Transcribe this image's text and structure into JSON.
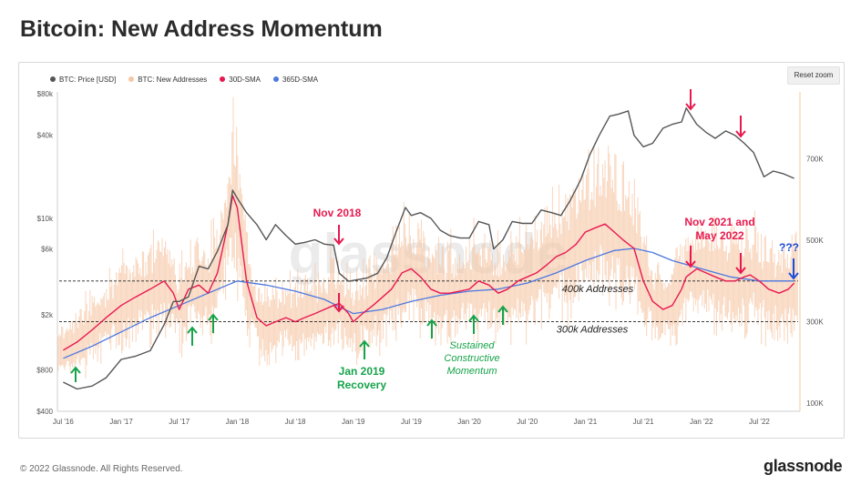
{
  "page": {
    "title": "Bitcoin: New Address Momentum",
    "copyright": "© 2022 Glassnode. All Rights Reserved.",
    "brand": "glassnode",
    "reset_zoom_label": "Reset zoom",
    "watermark": "glassnode"
  },
  "chart_data": {
    "type": "line",
    "title": "Bitcoin: New Address Momentum",
    "legend": [
      {
        "name": "BTC: Price [USD]",
        "color": "#555555"
      },
      {
        "name": "BTC: New Addresses",
        "color": "#f6c7a5"
      },
      {
        "name": "30D-SMA",
        "color": "#e8194f"
      },
      {
        "name": "365D-SMA",
        "color": "#4d79e0"
      }
    ],
    "legend_position": "top-left",
    "x_ticks": [
      "Jul '16",
      "Jan '17",
      "Jul '17",
      "Jan '18",
      "Jul '18",
      "Jan '19",
      "Jul '19",
      "Jan '20",
      "Jul '20",
      "Jan '21",
      "Jul '21",
      "Jan '22",
      "Jul '22"
    ],
    "x_range": [
      2016.45,
      2022.85
    ],
    "y_left": {
      "scale": "log",
      "ticks": [
        "$400",
        "$800",
        "$2k",
        "$6k",
        "$10k",
        "$40k",
        "$80k"
      ],
      "tick_values": [
        400,
        800,
        2000,
        6000,
        10000,
        40000,
        80000
      ],
      "range": [
        400,
        80000
      ]
    },
    "y_right": {
      "scale": "linear",
      "ticks": [
        "100K",
        "300K",
        "500K",
        "700K"
      ],
      "tick_values": [
        100000,
        300000,
        500000,
        700000
      ],
      "range": [
        80000,
        860000
      ]
    },
    "reference_lines": [
      {
        "value": 400000,
        "label": "400k Addresses"
      },
      {
        "value": 300000,
        "label": "300k Addresses"
      }
    ],
    "series": [
      {
        "name": "BTC: Price [USD]",
        "axis": "left",
        "x": [
          2016.5,
          2016.62,
          2016.75,
          2016.87,
          2017.0,
          2017.12,
          2017.25,
          2017.37,
          2017.45,
          2017.5,
          2017.58,
          2017.67,
          2017.75,
          2017.83,
          2017.92,
          2017.96,
          2018.0,
          2018.08,
          2018.17,
          2018.25,
          2018.33,
          2018.42,
          2018.5,
          2018.58,
          2018.67,
          2018.75,
          2018.83,
          2018.88,
          2018.96,
          2019.04,
          2019.12,
          2019.21,
          2019.29,
          2019.37,
          2019.45,
          2019.5,
          2019.58,
          2019.67,
          2019.75,
          2019.83,
          2019.92,
          2020.0,
          2020.08,
          2020.17,
          2020.21,
          2020.29,
          2020.37,
          2020.46,
          2020.54,
          2020.62,
          2020.71,
          2020.79,
          2020.87,
          2020.96,
          2021.04,
          2021.12,
          2021.21,
          2021.29,
          2021.37,
          2021.42,
          2021.5,
          2021.58,
          2021.67,
          2021.75,
          2021.83,
          2021.87,
          2021.96,
          2022.04,
          2022.12,
          2022.21,
          2022.29,
          2022.37,
          2022.45,
          2022.54,
          2022.62,
          2022.71,
          2022.8
        ],
        "y": [
          650,
          580,
          610,
          700,
          950,
          1000,
          1100,
          1700,
          2500,
          2500,
          2700,
          4500,
          4300,
          5800,
          9000,
          16000,
          14000,
          11000,
          9000,
          7000,
          9000,
          7500,
          6500,
          6700,
          7000,
          6500,
          6400,
          4000,
          3500,
          3600,
          3700,
          4000,
          5200,
          8000,
          12000,
          10500,
          11000,
          10000,
          8200,
          7500,
          7200,
          7200,
          9500,
          9000,
          6000,
          7000,
          9500,
          9200,
          9200,
          11500,
          11000,
          10500,
          13500,
          19000,
          29000,
          40000,
          55000,
          57000,
          60000,
          40000,
          33000,
          35000,
          45000,
          48000,
          50000,
          63000,
          48000,
          42000,
          38000,
          43000,
          40000,
          35000,
          30000,
          20000,
          22000,
          21000,
          19500
        ]
      },
      {
        "name": "30D-SMA",
        "axis": "right",
        "x": [
          2016.5,
          2016.62,
          2016.75,
          2016.87,
          2017.0,
          2017.12,
          2017.25,
          2017.37,
          2017.45,
          2017.5,
          2017.58,
          2017.67,
          2017.75,
          2017.83,
          2017.92,
          2017.96,
          2018.0,
          2018.08,
          2018.17,
          2018.25,
          2018.33,
          2018.42,
          2018.5,
          2018.58,
          2018.67,
          2018.75,
          2018.83,
          2018.88,
          2018.96,
          2019.0,
          2019.08,
          2019.17,
          2019.25,
          2019.33,
          2019.42,
          2019.5,
          2019.58,
          2019.67,
          2019.75,
          2019.83,
          2019.92,
          2020.0,
          2020.08,
          2020.17,
          2020.25,
          2020.33,
          2020.42,
          2020.5,
          2020.58,
          2020.67,
          2020.75,
          2020.83,
          2020.92,
          2021.0,
          2021.08,
          2021.17,
          2021.25,
          2021.33,
          2021.42,
          2021.5,
          2021.58,
          2021.67,
          2021.75,
          2021.83,
          2021.87,
          2021.96,
          2022.04,
          2022.12,
          2022.21,
          2022.29,
          2022.37,
          2022.42,
          2022.5,
          2022.58,
          2022.67,
          2022.75,
          2022.8
        ],
        "y": [
          230000,
          250000,
          280000,
          310000,
          340000,
          360000,
          380000,
          400000,
          370000,
          330000,
          380000,
          390000,
          370000,
          420000,
          540000,
          610000,
          580000,
          400000,
          310000,
          290000,
          300000,
          310000,
          300000,
          310000,
          320000,
          330000,
          340000,
          345000,
          320000,
          300000,
          320000,
          340000,
          360000,
          380000,
          420000,
          430000,
          410000,
          380000,
          370000,
          370000,
          375000,
          380000,
          400000,
          390000,
          370000,
          380000,
          400000,
          410000,
          420000,
          440000,
          460000,
          470000,
          490000,
          520000,
          530000,
          540000,
          520000,
          500000,
          480000,
          400000,
          350000,
          330000,
          340000,
          380000,
          410000,
          430000,
          420000,
          410000,
          400000,
          400000,
          410000,
          415000,
          400000,
          380000,
          370000,
          380000,
          395000
        ]
      },
      {
        "name": "365D-SMA",
        "axis": "right",
        "x": [
          2016.5,
          2016.75,
          2017.0,
          2017.25,
          2017.5,
          2017.75,
          2018.0,
          2018.25,
          2018.5,
          2018.75,
          2019.0,
          2019.25,
          2019.5,
          2019.75,
          2020.0,
          2020.25,
          2020.5,
          2020.75,
          2021.0,
          2021.25,
          2021.42,
          2021.58,
          2021.75,
          2022.0,
          2022.25,
          2022.5,
          2022.8
        ],
        "y": [
          210000,
          240000,
          275000,
          310000,
          340000,
          370000,
          400000,
          390000,
          375000,
          355000,
          320000,
          330000,
          350000,
          365000,
          375000,
          380000,
          395000,
          420000,
          450000,
          475000,
          480000,
          470000,
          450000,
          430000,
          410000,
          400000,
          400000
        ]
      }
    ],
    "annotations": [
      {
        "text": "Nov 2018",
        "color": "#e8194f"
      },
      {
        "text": "Jan 2019 Recovery",
        "line1": "Jan 2019",
        "line2": "Recovery",
        "color": "#16a34a"
      },
      {
        "text": "Sustained Constructive Momentum",
        "line1": "Sustained",
        "line2": "Constructive",
        "line3": "Momentum",
        "color": "#16a34a"
      },
      {
        "text": "Nov 2021 and May 2022",
        "line1": "Nov 2021 and",
        "line2": "May 2022",
        "color": "#e8194f"
      },
      {
        "text": "???",
        "color": "#1d4ed8"
      }
    ]
  }
}
